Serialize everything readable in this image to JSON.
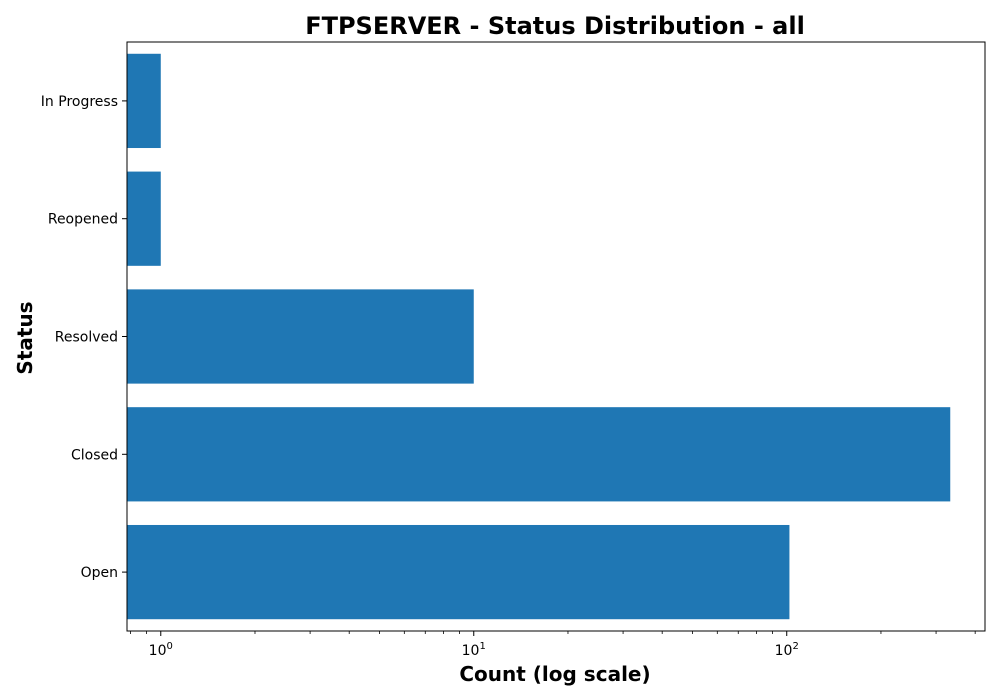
{
  "chart_data": {
    "type": "bar",
    "orientation": "horizontal",
    "title": "FTPSERVER - Status Distribution - all",
    "xlabel": "Count (log scale)",
    "ylabel": "Status",
    "x_scale": "log",
    "xlim": [
      0.78,
      430
    ],
    "x_major_ticks": [
      1,
      10,
      100
    ],
    "x_tick_labels": [
      {
        "base": "10",
        "exp": "0"
      },
      {
        "base": "10",
        "exp": "1"
      },
      {
        "base": "10",
        "exp": "2"
      }
    ],
    "categories": [
      "Open",
      "Closed",
      "Resolved",
      "Reopened",
      "In Progress"
    ],
    "values": [
      102,
      333,
      10,
      1,
      1
    ],
    "bar_color": "#1f77b4",
    "grid": false,
    "legend": "none"
  }
}
